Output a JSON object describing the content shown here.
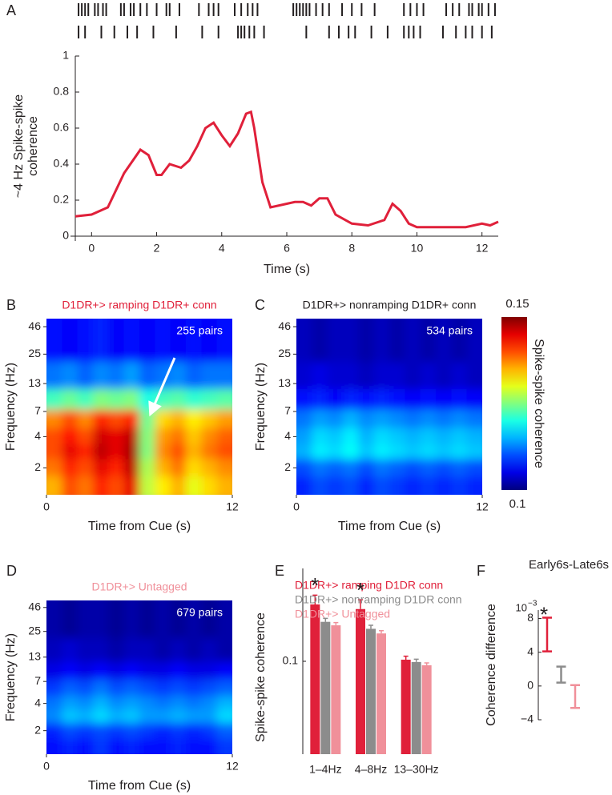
{
  "chart_data": [
    {
      "type": "line",
      "panel_label": "A",
      "xlabel": "Time (s)",
      "ylabel_lines": [
        "~4 Hz Spike-spike",
        "coherence"
      ],
      "x": [
        -0.5,
        0,
        0.5,
        1,
        1.5,
        1.75,
        2,
        2.15,
        2.4,
        2.75,
        3,
        3.25,
        3.5,
        3.75,
        4,
        4.25,
        4.5,
        4.75,
        4.9,
        5,
        5.25,
        5.5,
        6,
        6.25,
        6.5,
        6.75,
        7,
        7.25,
        7.5,
        8,
        8.5,
        9,
        9.25,
        9.5,
        9.75,
        10,
        10.5,
        11,
        11.5,
        12,
        12.25,
        12.5
      ],
      "values": [
        0.11,
        0.12,
        0.16,
        0.35,
        0.48,
        0.45,
        0.34,
        0.34,
        0.4,
        0.38,
        0.42,
        0.5,
        0.6,
        0.63,
        0.56,
        0.5,
        0.57,
        0.68,
        0.69,
        0.6,
        0.3,
        0.16,
        0.18,
        0.19,
        0.19,
        0.17,
        0.21,
        0.21,
        0.12,
        0.07,
        0.06,
        0.09,
        0.18,
        0.14,
        0.07,
        0.05,
        0.05,
        0.05,
        0.05,
        0.07,
        0.06,
        0.08
      ],
      "color": "#e0203a",
      "xlim": [
        -0.5,
        12.5
      ],
      "ylim": [
        0,
        1
      ],
      "xticks": [
        0,
        2,
        4,
        6,
        8,
        10,
        12
      ],
      "yticks": [
        0,
        0.2,
        0.4,
        0.6,
        0.8,
        1
      ],
      "spike_trains": [
        [
          -0.4,
          -0.3,
          -0.2,
          -0.1,
          0.1,
          0.2,
          0.35,
          0.45,
          0.9,
          1.0,
          1.2,
          1.3,
          1.5,
          1.7,
          2.0,
          2.3,
          2.4,
          2.7,
          3.3,
          3.6,
          3.75,
          3.9,
          4.4,
          4.6,
          4.8,
          4.95,
          5.1,
          6.2,
          6.3,
          6.4,
          6.5,
          6.6,
          6.7,
          6.9,
          7.1,
          7.3,
          7.7,
          8.0,
          8.3,
          8.7,
          9.6,
          9.8,
          10.0,
          10.2,
          10.9,
          11.1,
          11.3,
          11.6,
          11.7,
          11.9,
          12.0,
          12.2,
          12.4
        ],
        [
          -0.4,
          -0.2,
          0.3,
          0.7,
          1.1,
          1.4,
          1.9,
          2.6,
          3.4,
          3.9,
          4.5,
          4.6,
          4.7,
          4.85,
          5.0,
          5.3,
          6.6,
          7.3,
          7.6,
          7.9,
          8.1,
          8.6,
          9.1,
          9.6,
          9.75,
          9.9,
          10.1,
          10.8,
          11.2,
          11.5,
          11.7,
          12.0,
          12.3
        ]
      ]
    },
    {
      "type": "heatmap",
      "panel_label": "B",
      "title": "D1DR+> ramping D1DR+ conn",
      "title_color": "#e0203a",
      "annotation": "255 pairs",
      "xlabel": "Time from Cue (s)",
      "ylabel": "Frequency (Hz)",
      "log_y": true,
      "x": [
        0.5,
        1.5,
        2.5,
        3.5,
        4.5,
        5.5,
        6.5,
        7.5,
        8.5,
        9.5,
        10.5,
        11.5
      ],
      "y": [
        1.4,
        2,
        3,
        4,
        6,
        9,
        15,
        30
      ],
      "xlim": [
        0,
        12
      ],
      "ylim": [
        1.1,
        55
      ],
      "xticks": [
        0,
        12
      ],
      "yticks": [
        2,
        4,
        7,
        13,
        25,
        46
      ],
      "zlim": [
        0.1,
        0.15
      ],
      "z": [
        [
          0.135,
          0.14,
          0.138,
          0.142,
          0.14,
          0.145,
          0.128,
          0.132,
          0.135,
          0.13,
          0.133,
          0.135
        ],
        [
          0.138,
          0.142,
          0.14,
          0.145,
          0.142,
          0.147,
          0.127,
          0.135,
          0.138,
          0.133,
          0.135,
          0.137
        ],
        [
          0.14,
          0.145,
          0.142,
          0.147,
          0.145,
          0.148,
          0.125,
          0.137,
          0.14,
          0.135,
          0.138,
          0.14
        ],
        [
          0.14,
          0.143,
          0.14,
          0.146,
          0.145,
          0.147,
          0.125,
          0.136,
          0.138,
          0.134,
          0.137,
          0.139
        ],
        [
          0.137,
          0.14,
          0.137,
          0.142,
          0.14,
          0.142,
          0.124,
          0.133,
          0.135,
          0.132,
          0.134,
          0.136
        ],
        [
          0.122,
          0.124,
          0.122,
          0.125,
          0.124,
          0.125,
          0.12,
          0.122,
          0.123,
          0.121,
          0.122,
          0.123
        ],
        [
          0.112,
          0.113,
          0.111,
          0.113,
          0.112,
          0.114,
          0.111,
          0.112,
          0.113,
          0.111,
          0.112,
          0.112
        ],
        [
          0.107,
          0.106,
          0.107,
          0.108,
          0.106,
          0.107,
          0.106,
          0.107,
          0.106,
          0.107,
          0.106,
          0.107
        ]
      ]
    },
    {
      "type": "heatmap",
      "panel_label": "C",
      "title": "D1DR+> nonramping D1DR+ conn",
      "title_color": "#231f20",
      "annotation": "534 pairs",
      "xlabel": "Time from Cue (s)",
      "ylabel": "Frequency (Hz)",
      "log_y": true,
      "x": [
        0.5,
        1.5,
        2.5,
        3.5,
        4.5,
        5.5,
        6.5,
        7.5,
        8.5,
        9.5,
        10.5,
        11.5
      ],
      "y": [
        1.4,
        2,
        3,
        4,
        6,
        9,
        15,
        30
      ],
      "xlim": [
        0,
        12
      ],
      "ylim": [
        1.1,
        55
      ],
      "xticks": [
        0,
        12
      ],
      "yticks": [
        2,
        4,
        7,
        13,
        25,
        46
      ],
      "zlim": [
        0.1,
        0.15
      ],
      "z": [
        [
          0.108,
          0.11,
          0.109,
          0.11,
          0.108,
          0.11,
          0.109,
          0.108,
          0.109,
          0.108,
          0.109,
          0.108
        ],
        [
          0.11,
          0.112,
          0.111,
          0.112,
          0.11,
          0.112,
          0.111,
          0.11,
          0.111,
          0.11,
          0.111,
          0.11
        ],
        [
          0.115,
          0.118,
          0.117,
          0.119,
          0.116,
          0.118,
          0.117,
          0.116,
          0.117,
          0.116,
          0.117,
          0.116
        ],
        [
          0.114,
          0.117,
          0.116,
          0.118,
          0.115,
          0.117,
          0.116,
          0.115,
          0.116,
          0.115,
          0.116,
          0.115
        ],
        [
          0.112,
          0.114,
          0.113,
          0.115,
          0.113,
          0.114,
          0.113,
          0.112,
          0.113,
          0.112,
          0.113,
          0.112
        ],
        [
          0.107,
          0.108,
          0.106,
          0.108,
          0.107,
          0.108,
          0.107,
          0.106,
          0.107,
          0.106,
          0.107,
          0.106
        ],
        [
          0.104,
          0.105,
          0.104,
          0.104,
          0.103,
          0.104,
          0.104,
          0.103,
          0.104,
          0.103,
          0.104,
          0.103
        ],
        [
          0.103,
          0.102,
          0.103,
          0.103,
          0.102,
          0.103,
          0.102,
          0.103,
          0.102,
          0.103,
          0.102,
          0.103
        ]
      ],
      "colorbar": {
        "label": "Spike-spike coherence",
        "ticks": [
          0.1,
          0.15
        ]
      }
    },
    {
      "type": "heatmap",
      "panel_label": "D",
      "title": "D1DR+> Untagged",
      "title_color": "#f0909a",
      "annotation": "679 pairs",
      "xlabel": "Time from Cue (s)",
      "ylabel": "Frequency (Hz)",
      "log_y": true,
      "x": [
        0.5,
        1.5,
        2.5,
        3.5,
        4.5,
        5.5,
        6.5,
        7.5,
        8.5,
        9.5,
        10.5,
        11.5
      ],
      "y": [
        1.4,
        2,
        3,
        4,
        6,
        9,
        15,
        30
      ],
      "xlim": [
        0,
        12
      ],
      "ylim": [
        1.1,
        55
      ],
      "xticks": [
        0,
        12
      ],
      "yticks": [
        2,
        4,
        7,
        13,
        25,
        46
      ],
      "zlim": [
        0.1,
        0.15
      ],
      "z": [
        [
          0.107,
          0.108,
          0.107,
          0.109,
          0.107,
          0.108,
          0.107,
          0.107,
          0.108,
          0.107,
          0.107,
          0.109
        ],
        [
          0.108,
          0.11,
          0.109,
          0.11,
          0.109,
          0.11,
          0.109,
          0.108,
          0.109,
          0.108,
          0.109,
          0.111
        ],
        [
          0.113,
          0.116,
          0.115,
          0.117,
          0.115,
          0.116,
          0.114,
          0.114,
          0.115,
          0.114,
          0.114,
          0.117
        ],
        [
          0.112,
          0.114,
          0.113,
          0.115,
          0.113,
          0.114,
          0.113,
          0.112,
          0.113,
          0.112,
          0.113,
          0.115
        ],
        [
          0.109,
          0.111,
          0.11,
          0.112,
          0.11,
          0.111,
          0.11,
          0.109,
          0.11,
          0.109,
          0.11,
          0.111
        ],
        [
          0.105,
          0.106,
          0.105,
          0.106,
          0.105,
          0.106,
          0.105,
          0.105,
          0.106,
          0.105,
          0.105,
          0.106
        ],
        [
          0.103,
          0.104,
          0.103,
          0.103,
          0.102,
          0.103,
          0.103,
          0.102,
          0.103,
          0.102,
          0.103,
          0.102
        ],
        [
          0.102,
          0.101,
          0.102,
          0.102,
          0.101,
          0.102,
          0.101,
          0.102,
          0.101,
          0.102,
          0.101,
          0.102
        ]
      ]
    },
    {
      "type": "bar",
      "panel_label": "E",
      "ylabel": "Spike-spike coherence",
      "categories": [
        "1–4Hz",
        "4–8Hz",
        "13–30Hz"
      ],
      "ylim": [
        0.06,
        0.14
      ],
      "yticks": [
        0.1
      ],
      "markers": [
        "*",
        "*",
        null
      ],
      "series": [
        {
          "name": "D1DR+> ramping D1DR conn",
          "color": "#e0203a",
          "values": [
            0.1245,
            0.1225,
            0.1007
          ],
          "errors": [
            0.004,
            0.004,
            0.0015
          ]
        },
        {
          "name": "D1DR+> nonramping D1DR conn",
          "color": "#8c8c8c",
          "values": [
            0.117,
            0.114,
            0.0997
          ],
          "errors": [
            0.0015,
            0.0015,
            0.0012
          ]
        },
        {
          "name": "D1DR+> Untagged",
          "color": "#f0909a",
          "values": [
            0.1155,
            0.112,
            0.0983
          ],
          "errors": [
            0.0012,
            0.0012,
            0.001
          ]
        }
      ]
    },
    {
      "type": "errorbar",
      "panel_label": "F",
      "title": "Early6s-Late6s",
      "ylabel": "Coherence difference",
      "y_multiplier": {
        "base": "10",
        "exponent": "−3"
      },
      "ylim": [
        -4,
        9
      ],
      "yticks": [
        {
          "value": -4,
          "label": "−4"
        },
        0,
        4,
        8
      ],
      "values": [
        6.1,
        1.35,
        -1.25
      ],
      "errors": [
        2.0,
        0.95,
        1.35
      ],
      "colors": [
        "#e0203a",
        "#8c8c8c",
        "#f0909a"
      ],
      "markers": [
        "*",
        null,
        null
      ]
    }
  ]
}
